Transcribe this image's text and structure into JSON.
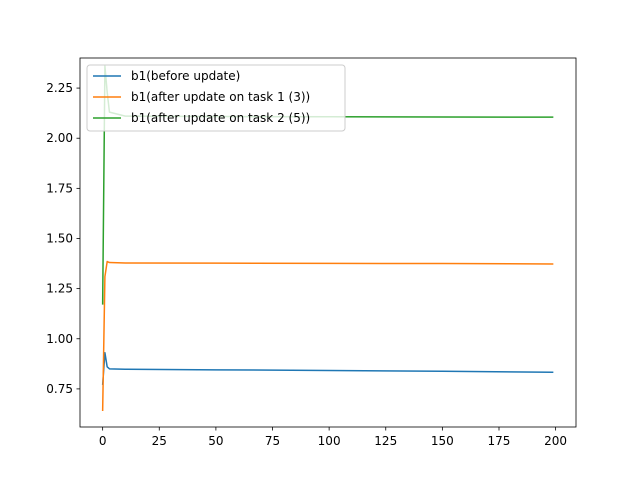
{
  "chart_data": {
    "type": "line",
    "title": "",
    "xlabel": "",
    "ylabel": "",
    "xlim": [
      -10,
      209
    ],
    "ylim": [
      0.56,
      2.4
    ],
    "xticks": [
      0,
      25,
      50,
      75,
      100,
      125,
      150,
      175,
      200
    ],
    "yticks": [
      0.75,
      1.0,
      1.25,
      1.5,
      1.75,
      2.0,
      2.25
    ],
    "xtick_labels": [
      "0",
      "25",
      "50",
      "75",
      "100",
      "125",
      "150",
      "175",
      "200"
    ],
    "ytick_labels": [
      "0.75",
      "1.00",
      "1.25",
      "1.50",
      "1.75",
      "2.00",
      "2.25"
    ],
    "grid": false,
    "legend_position": "upper-left",
    "series": [
      {
        "name": "b1(before update)",
        "color": "#1f77b4",
        "points": [
          [
            0,
            0.77
          ],
          [
            1,
            0.93
          ],
          [
            2,
            0.86
          ],
          [
            3,
            0.85
          ],
          [
            10,
            0.848
          ],
          [
            50,
            0.845
          ],
          [
            100,
            0.842
          ],
          [
            150,
            0.838
          ],
          [
            199,
            0.833
          ]
        ]
      },
      {
        "name": "b1(after update on task 1 (3))",
        "color": "#ff7f0e",
        "points": [
          [
            0,
            0.64
          ],
          [
            1,
            1.31
          ],
          [
            2,
            1.385
          ],
          [
            3,
            1.38
          ],
          [
            10,
            1.378
          ],
          [
            50,
            1.377
          ],
          [
            100,
            1.376
          ],
          [
            150,
            1.375
          ],
          [
            199,
            1.373
          ]
        ]
      },
      {
        "name": "b1(after update on task 2 (5))",
        "color": "#2ca02c",
        "points": [
          [
            0,
            1.17
          ],
          [
            1,
            2.36
          ],
          [
            2,
            2.23
          ],
          [
            3,
            2.13
          ],
          [
            10,
            2.11
          ],
          [
            50,
            2.108
          ],
          [
            100,
            2.107
          ],
          [
            150,
            2.106
          ],
          [
            199,
            2.105
          ]
        ]
      }
    ]
  }
}
